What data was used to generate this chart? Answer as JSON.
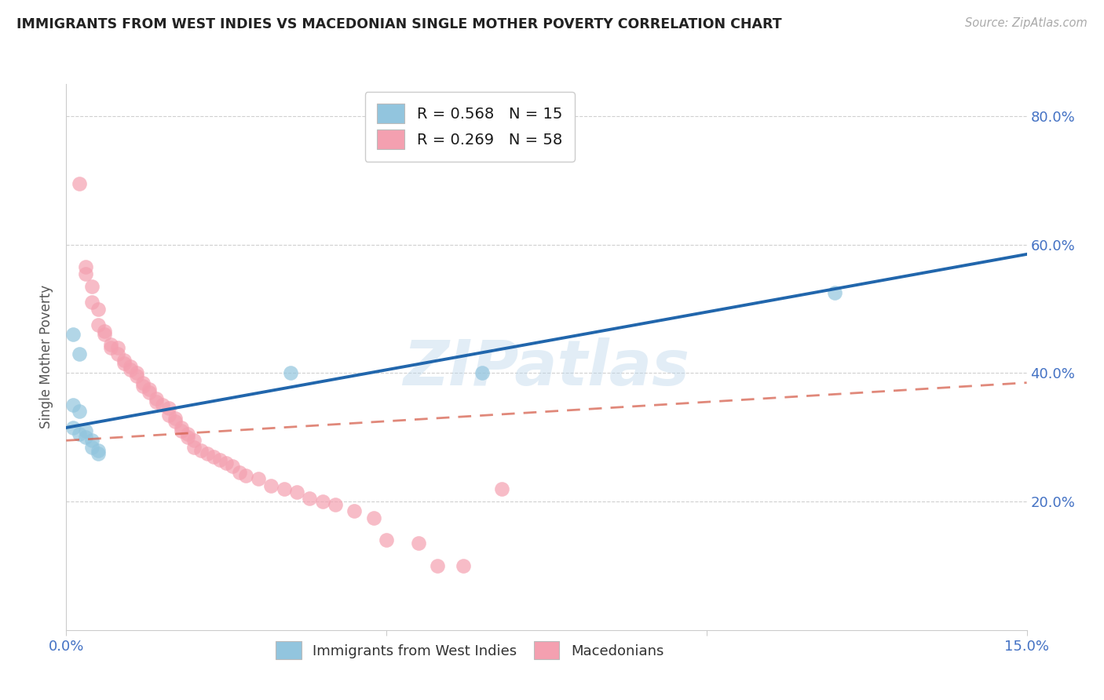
{
  "title": "IMMIGRANTS FROM WEST INDIES VS MACEDONIAN SINGLE MOTHER POVERTY CORRELATION CHART",
  "source": "Source: ZipAtlas.com",
  "ylabel": "Single Mother Poverty",
  "yticks": [
    0.2,
    0.4,
    0.6,
    0.8
  ],
  "ytick_labels": [
    "20.0%",
    "40.0%",
    "60.0%",
    "80.0%"
  ],
  "xlim": [
    0.0,
    0.15
  ],
  "ylim": [
    0.0,
    0.85
  ],
  "legend1_label": "R = 0.568   N = 15",
  "legend2_label": "R = 0.269   N = 58",
  "legend_xlabel1": "Immigrants from West Indies",
  "legend_xlabel2": "Macedonians",
  "blue_color": "#92c5de",
  "pink_color": "#f4a0b0",
  "blue_line_color": "#2166ac",
  "pink_line_color": "#d6604d",
  "watermark_text": "ZIPatlas",
  "blue_scatter": [
    [
      0.001,
      0.46
    ],
    [
      0.002,
      0.43
    ],
    [
      0.001,
      0.35
    ],
    [
      0.002,
      0.34
    ],
    [
      0.001,
      0.315
    ],
    [
      0.003,
      0.31
    ],
    [
      0.002,
      0.305
    ],
    [
      0.003,
      0.3
    ],
    [
      0.004,
      0.295
    ],
    [
      0.004,
      0.285
    ],
    [
      0.005,
      0.28
    ],
    [
      0.005,
      0.275
    ],
    [
      0.035,
      0.4
    ],
    [
      0.065,
      0.4
    ],
    [
      0.12,
      0.525
    ]
  ],
  "pink_scatter": [
    [
      0.002,
      0.695
    ],
    [
      0.003,
      0.565
    ],
    [
      0.003,
      0.555
    ],
    [
      0.004,
      0.535
    ],
    [
      0.004,
      0.51
    ],
    [
      0.005,
      0.5
    ],
    [
      0.005,
      0.475
    ],
    [
      0.006,
      0.465
    ],
    [
      0.006,
      0.46
    ],
    [
      0.007,
      0.445
    ],
    [
      0.007,
      0.44
    ],
    [
      0.008,
      0.44
    ],
    [
      0.008,
      0.43
    ],
    [
      0.009,
      0.42
    ],
    [
      0.009,
      0.415
    ],
    [
      0.01,
      0.41
    ],
    [
      0.01,
      0.405
    ],
    [
      0.011,
      0.4
    ],
    [
      0.011,
      0.395
    ],
    [
      0.012,
      0.385
    ],
    [
      0.012,
      0.38
    ],
    [
      0.013,
      0.375
    ],
    [
      0.013,
      0.37
    ],
    [
      0.014,
      0.36
    ],
    [
      0.014,
      0.355
    ],
    [
      0.015,
      0.35
    ],
    [
      0.016,
      0.345
    ],
    [
      0.016,
      0.335
    ],
    [
      0.017,
      0.33
    ],
    [
      0.017,
      0.325
    ],
    [
      0.018,
      0.315
    ],
    [
      0.018,
      0.31
    ],
    [
      0.019,
      0.305
    ],
    [
      0.019,
      0.3
    ],
    [
      0.02,
      0.295
    ],
    [
      0.02,
      0.285
    ],
    [
      0.021,
      0.28
    ],
    [
      0.022,
      0.275
    ],
    [
      0.023,
      0.27
    ],
    [
      0.024,
      0.265
    ],
    [
      0.025,
      0.26
    ],
    [
      0.026,
      0.255
    ],
    [
      0.027,
      0.245
    ],
    [
      0.028,
      0.24
    ],
    [
      0.03,
      0.235
    ],
    [
      0.032,
      0.225
    ],
    [
      0.034,
      0.22
    ],
    [
      0.036,
      0.215
    ],
    [
      0.038,
      0.205
    ],
    [
      0.04,
      0.2
    ],
    [
      0.042,
      0.195
    ],
    [
      0.045,
      0.185
    ],
    [
      0.048,
      0.175
    ],
    [
      0.05,
      0.14
    ],
    [
      0.055,
      0.135
    ],
    [
      0.058,
      0.1
    ],
    [
      0.062,
      0.1
    ],
    [
      0.068,
      0.22
    ]
  ]
}
